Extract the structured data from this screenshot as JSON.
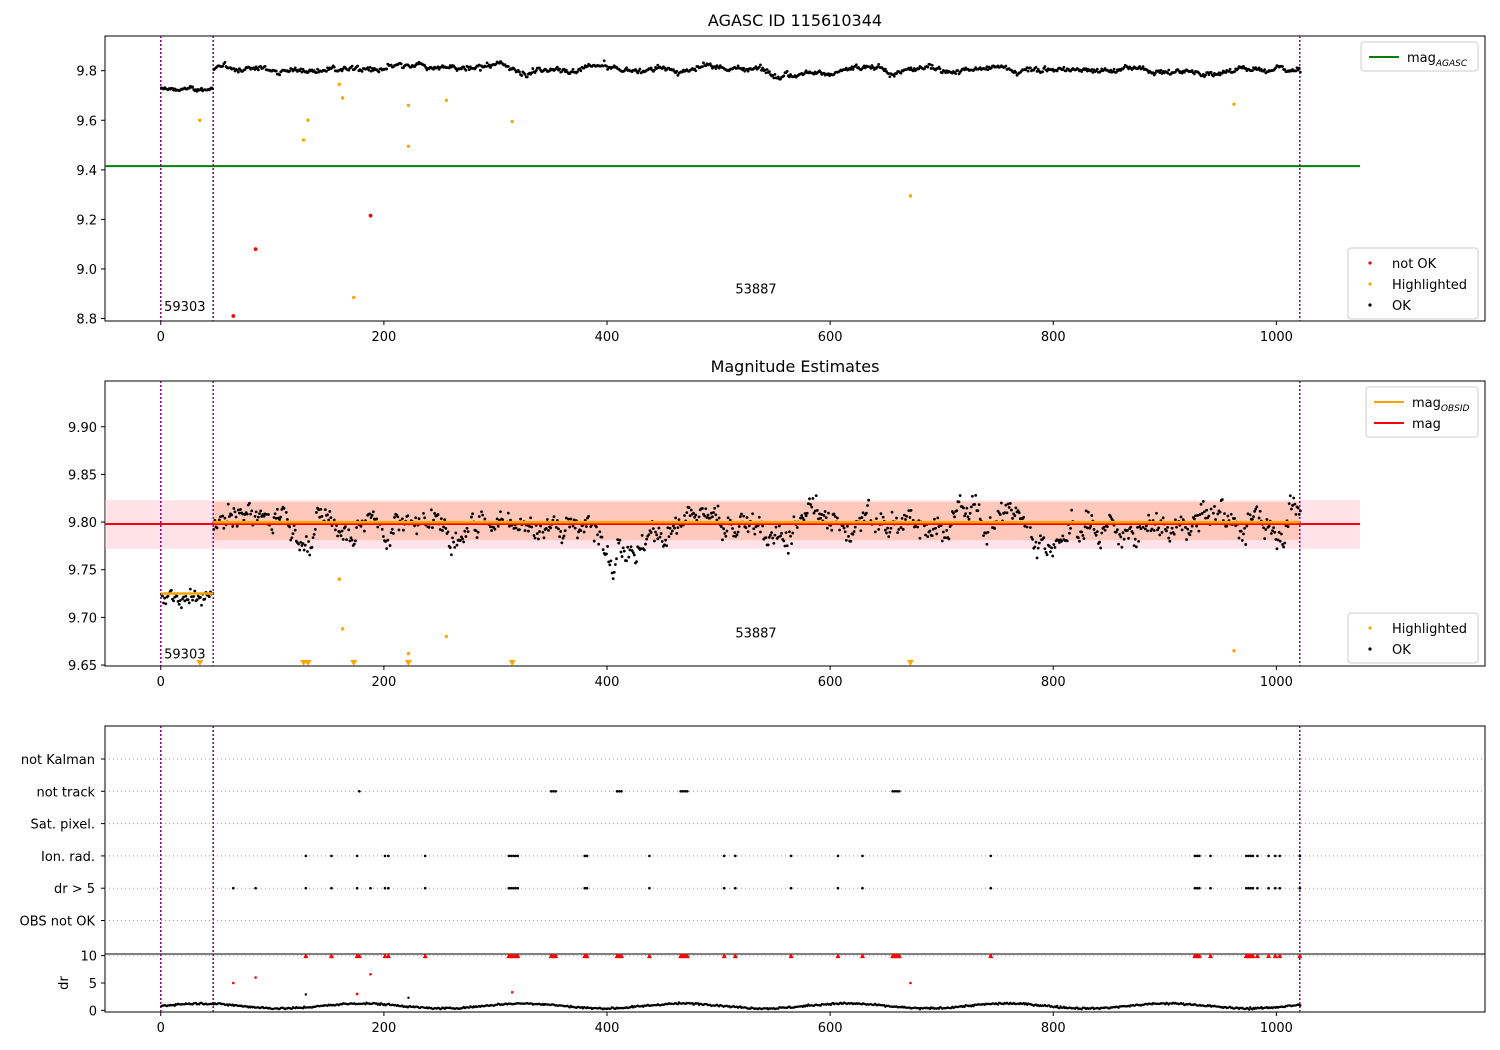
{
  "figure": {
    "id": "AGASC ID 115610344"
  },
  "colors": {
    "ok": "#000000",
    "highlighted": "#ffa500",
    "not_ok": "#ff0000",
    "mag_agasc": "#008000",
    "mag": "#ff0000",
    "mag_obsid": "#ffa500",
    "vline": "#800080",
    "band_mag": "#ffc0cb",
    "band_obsid": "#ffa07a"
  },
  "chart_data": [
    {
      "type": "scatter",
      "title": "AGASC ID 115610344",
      "xlim": [
        -50,
        1187
      ],
      "ylim": [
        8.79,
        9.94
      ],
      "xticks": [
        0,
        200,
        400,
        600,
        800,
        1000
      ],
      "yticks": [
        8.8,
        9.0,
        9.2,
        9.4,
        9.6,
        9.8
      ],
      "ytick_labels": [
        "8.8",
        "9.0",
        "9.2",
        "9.4",
        "9.6",
        "9.8"
      ],
      "obsid_boundaries": [
        0,
        47,
        1021
      ],
      "obsid_labels": [
        {
          "text": "59303",
          "x": 3,
          "y": 8.83
        },
        {
          "text": "53887",
          "x": 515,
          "y": 8.9
        }
      ],
      "lines": [
        {
          "name": "mag_AGASC",
          "y": 9.415,
          "x0": -50,
          "x1": 1075
        }
      ],
      "legends": [
        {
          "loc": "upper right",
          "items": [
            {
              "label": "mag",
              "sub": "AGASC",
              "kind": "line",
              "color_key": "mag_agasc"
            }
          ]
        },
        {
          "loc": "lower right",
          "items": [
            {
              "label": "not OK",
              "kind": "dot",
              "color_key": "not_ok"
            },
            {
              "label": "Highlighted",
              "kind": "dot",
              "color_key": "highlighted"
            },
            {
              "label": "OK",
              "kind": "dot",
              "color_key": "ok"
            }
          ]
        }
      ],
      "ok_segments": [
        {
          "x0": 0,
          "x1": 47,
          "mean": 9.725,
          "sd": 0.01
        },
        {
          "x0": 47,
          "x1": 1022,
          "mean": 9.805,
          "sd": 0.016
        }
      ],
      "highlighted": [
        [
          35,
          9.6
        ],
        [
          128,
          9.52
        ],
        [
          132,
          9.6
        ],
        [
          160,
          9.745
        ],
        [
          163,
          9.69
        ],
        [
          173,
          8.885
        ],
        [
          222,
          9.66
        ],
        [
          222,
          9.495
        ],
        [
          256,
          9.68
        ],
        [
          315,
          9.595
        ],
        [
          672,
          9.295
        ],
        [
          962,
          9.665
        ]
      ],
      "not_ok": [
        [
          65,
          8.81
        ],
        [
          85,
          9.08
        ],
        [
          188,
          9.215
        ]
      ]
    },
    {
      "type": "scatter",
      "title": "Magnitude Estimates",
      "xlim": [
        -50,
        1187
      ],
      "ylim": [
        9.649,
        9.948
      ],
      "xticks": [
        0,
        200,
        400,
        600,
        800,
        1000
      ],
      "yticks": [
        9.65,
        9.7,
        9.75,
        9.8,
        9.85,
        9.9
      ],
      "ytick_labels": [
        "9.65",
        "9.70",
        "9.75",
        "9.80",
        "9.85",
        "9.90"
      ],
      "obsid_boundaries": [
        0,
        47,
        1021
      ],
      "obsid_labels": [
        {
          "text": "59303",
          "x": 3,
          "y": 9.657
        },
        {
          "text": "53887",
          "x": 515,
          "y": 9.679
        }
      ],
      "lines": [
        {
          "name": "mag",
          "y": 9.798,
          "x0": -50,
          "x1": 1075,
          "band": [
            9.772,
            9.823
          ]
        },
        {
          "name": "mag_OBSID",
          "segments": [
            {
              "x0": 0,
              "x1": 47,
              "y": 9.725
            },
            {
              "x0": 47,
              "x1": 1021,
              "y": 9.8,
              "band": [
                9.781,
                9.821
              ]
            }
          ]
        }
      ],
      "legends": [
        {
          "loc": "upper right",
          "items": [
            {
              "label": "mag",
              "sub": "OBSID",
              "kind": "line",
              "color_key": "mag_obsid"
            },
            {
              "label": "mag",
              "kind": "line",
              "color_key": "mag"
            }
          ]
        },
        {
          "loc": "lower right",
          "items": [
            {
              "label": "Highlighted",
              "kind": "dot",
              "color_key": "highlighted"
            },
            {
              "label": "OK",
              "kind": "dot",
              "color_key": "ok"
            }
          ]
        }
      ],
      "ok_segments": [
        {
          "x0": 0,
          "x1": 47,
          "mean": 9.724,
          "sd": 0.011
        },
        {
          "x0": 47,
          "x1": 1022,
          "mean": 9.801,
          "sd": 0.019
        }
      ],
      "highlighted": [
        [
          160,
          9.74
        ],
        [
          163,
          9.688
        ],
        [
          222,
          9.662
        ],
        [
          256,
          9.68
        ],
        [
          962,
          9.665
        ]
      ],
      "off_scale_markers": [
        35,
        128,
        132,
        173,
        222,
        315,
        672
      ]
    },
    {
      "type": "scatter",
      "title": "",
      "xlim": [
        -50,
        1187
      ],
      "ylim": [
        -0.5,
        6.5
      ],
      "ytick_labels": [
        "not Kalman",
        "not track",
        "Sat. pixel.",
        "Ion. rad.",
        "dr > 5",
        "OBS not OK"
      ],
      "obsid_boundaries": [
        0,
        47,
        1021
      ],
      "flags": {
        "not Kalman": [],
        "not track": [
          178,
          350,
          352,
          354,
          409,
          411,
          413,
          466,
          468,
          470,
          472,
          656,
          658,
          660,
          662
        ],
        "Sat. pixel.": [],
        "Ion. rad.": [
          130,
          153,
          176,
          201,
          204,
          237,
          312,
          314,
          316,
          318,
          320,
          380,
          382,
          438,
          505,
          515,
          565,
          607,
          629,
          744,
          927,
          929,
          931,
          941,
          973,
          975,
          977,
          979,
          983,
          993,
          999,
          1003,
          1021
        ],
        "dr > 5": [
          65,
          85,
          130,
          153,
          176,
          188,
          201,
          204,
          237,
          312,
          314,
          316,
          318,
          320,
          380,
          382,
          438,
          505,
          515,
          565,
          607,
          629,
          744,
          927,
          929,
          931,
          941,
          973,
          975,
          977,
          979,
          983,
          993,
          999,
          1003,
          1021
        ],
        "OBS not OK": []
      }
    },
    {
      "type": "scatter",
      "title": "",
      "ylabel": "dr",
      "xlim": [
        -50,
        1187
      ],
      "ylim": [
        -0.3,
        10.3
      ],
      "xticks": [
        0,
        200,
        400,
        600,
        800,
        1000
      ],
      "yticks": [
        0,
        5,
        10
      ],
      "ytick_labels": [
        "0",
        "5",
        "10"
      ],
      "obsid_boundaries": [
        0,
        47,
        1021
      ],
      "baseline_mean": 0.8,
      "red_points": [
        [
          65,
          5
        ],
        [
          85,
          6
        ],
        [
          176,
          3
        ],
        [
          188,
          6.6
        ],
        [
          315,
          3.3
        ],
        [
          672,
          5
        ]
      ],
      "clipped_markers": [
        130,
        153,
        176,
        178,
        201,
        204,
        237,
        312,
        314,
        316,
        318,
        320,
        350,
        352,
        354,
        380,
        382,
        409,
        411,
        413,
        438,
        466,
        468,
        470,
        472,
        505,
        515,
        565,
        607,
        629,
        656,
        658,
        660,
        662,
        744,
        927,
        929,
        931,
        941,
        973,
        975,
        977,
        979,
        983,
        993,
        999,
        1003,
        1021
      ],
      "extra_points": [
        [
          130,
          2.9
        ],
        [
          222,
          2.3
        ]
      ]
    }
  ]
}
